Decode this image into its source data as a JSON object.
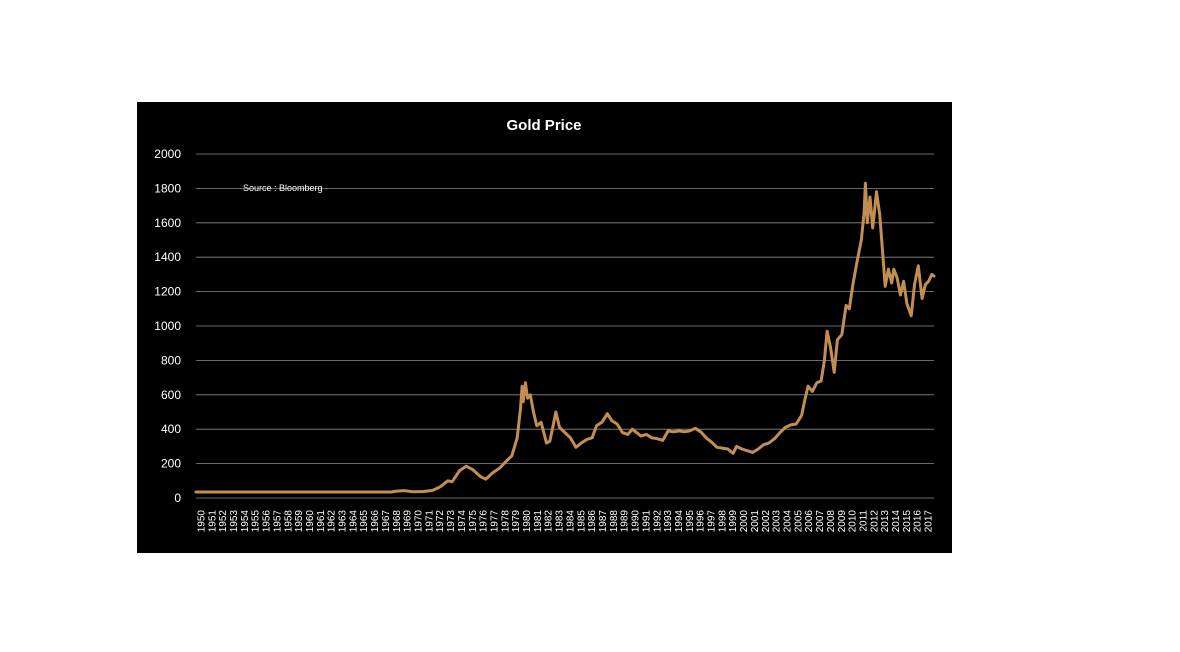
{
  "chart_data": {
    "type": "line",
    "title": "Gold Price",
    "annotation": "Source : Bloomberg",
    "xlabel": "",
    "ylabel": "",
    "ylim": [
      0,
      2000
    ],
    "yticks": [
      0,
      200,
      400,
      600,
      800,
      1000,
      1200,
      1400,
      1600,
      1800,
      2000
    ],
    "xlim": [
      1950,
      2018
    ],
    "grid": "horizontal",
    "legend": "none",
    "line_color": "#c28e54",
    "background": "#000000",
    "xtick_labels": [
      "1950",
      "1951",
      "1952",
      "1953",
      "1954",
      "1955",
      "1956",
      "1957",
      "1958",
      "1959",
      "1960",
      "1961",
      "1962",
      "1963",
      "1964",
      "1965",
      "1966",
      "1967",
      "1968",
      "1969",
      "1970",
      "1971",
      "1972",
      "1973",
      "1974",
      "1975",
      "1976",
      "1977",
      "1978",
      "1979",
      "1980",
      "1981",
      "1982",
      "1983",
      "1984",
      "1985",
      "1986",
      "1987",
      "1988",
      "1989",
      "1990",
      "1991",
      "1992",
      "1993",
      "1994",
      "1995",
      "1996",
      "1997",
      "1998",
      "1999",
      "2000",
      "2001",
      "2002",
      "2003",
      "2004",
      "2005",
      "2006",
      "2007",
      "2008",
      "2009",
      "2010",
      "2011",
      "2012",
      "2013",
      "2014",
      "2015",
      "2016",
      "2017"
    ],
    "series": [
      {
        "values": [
          [
            1950,
            35
          ],
          [
            1968,
            35
          ],
          [
            1968.5,
            40
          ],
          [
            1969.2,
            43
          ],
          [
            1970,
            36
          ],
          [
            1971,
            38
          ],
          [
            1971.8,
            44
          ],
          [
            1972.5,
            65
          ],
          [
            1973.2,
            100
          ],
          [
            1973.6,
            95
          ],
          [
            1974.3,
            160
          ],
          [
            1974.9,
            185
          ],
          [
            1975.5,
            165
          ],
          [
            1976.2,
            125
          ],
          [
            1976.7,
            110
          ],
          [
            1977.3,
            145
          ],
          [
            1978,
            175
          ],
          [
            1978.6,
            215
          ],
          [
            1979.1,
            245
          ],
          [
            1979.6,
            350
          ],
          [
            1979.9,
            520
          ],
          [
            1980.05,
            650
          ],
          [
            1980.15,
            560
          ],
          [
            1980.35,
            670
          ],
          [
            1980.55,
            580
          ],
          [
            1980.8,
            600
          ],
          [
            1981.1,
            500
          ],
          [
            1981.4,
            420
          ],
          [
            1981.8,
            440
          ],
          [
            1982.3,
            320
          ],
          [
            1982.6,
            330
          ],
          [
            1982.9,
            420
          ],
          [
            1983.15,
            500
          ],
          [
            1983.5,
            410
          ],
          [
            1984,
            380
          ],
          [
            1984.5,
            350
          ],
          [
            1985,
            295
          ],
          [
            1985.5,
            320
          ],
          [
            1986,
            340
          ],
          [
            1986.5,
            350
          ],
          [
            1986.9,
            420
          ],
          [
            1987.4,
            440
          ],
          [
            1987.9,
            490
          ],
          [
            1988.3,
            450
          ],
          [
            1988.8,
            430
          ],
          [
            1989.3,
            380
          ],
          [
            1989.8,
            370
          ],
          [
            1990.2,
            400
          ],
          [
            1990.6,
            380
          ],
          [
            1991,
            360
          ],
          [
            1991.5,
            370
          ],
          [
            1992,
            350
          ],
          [
            1992.5,
            345
          ],
          [
            1993,
            335
          ],
          [
            1993.5,
            390
          ],
          [
            1994,
            385
          ],
          [
            1994.5,
            390
          ],
          [
            1995,
            385
          ],
          [
            1995.5,
            390
          ],
          [
            1996,
            405
          ],
          [
            1996.5,
            385
          ],
          [
            1997,
            350
          ],
          [
            1997.5,
            325
          ],
          [
            1998,
            295
          ],
          [
            1998.5,
            290
          ],
          [
            1999,
            285
          ],
          [
            1999.5,
            260
          ],
          [
            1999.8,
            300
          ],
          [
            2000.3,
            285
          ],
          [
            2000.8,
            275
          ],
          [
            2001.3,
            265
          ],
          [
            2001.8,
            285
          ],
          [
            2002.3,
            310
          ],
          [
            2002.8,
            320
          ],
          [
            2003.3,
            345
          ],
          [
            2003.8,
            380
          ],
          [
            2004.3,
            410
          ],
          [
            2004.8,
            425
          ],
          [
            2005.3,
            430
          ],
          [
            2005.8,
            480
          ],
          [
            2006.1,
            570
          ],
          [
            2006.4,
            650
          ],
          [
            2006.8,
            620
          ],
          [
            2007.2,
            670
          ],
          [
            2007.6,
            680
          ],
          [
            2007.9,
            800
          ],
          [
            2008.15,
            970
          ],
          [
            2008.45,
            880
          ],
          [
            2008.8,
            730
          ],
          [
            2009.1,
            920
          ],
          [
            2009.5,
            950
          ],
          [
            2009.9,
            1120
          ],
          [
            2010.2,
            1100
          ],
          [
            2010.5,
            1230
          ],
          [
            2010.9,
            1370
          ],
          [
            2011.3,
            1500
          ],
          [
            2011.55,
            1650
          ],
          [
            2011.68,
            1830
          ],
          [
            2011.85,
            1600
          ],
          [
            2012.1,
            1750
          ],
          [
            2012.35,
            1570
          ],
          [
            2012.7,
            1780
          ],
          [
            2013,
            1650
          ],
          [
            2013.3,
            1400
          ],
          [
            2013.5,
            1230
          ],
          [
            2013.8,
            1330
          ],
          [
            2014.1,
            1250
          ],
          [
            2014.3,
            1330
          ],
          [
            2014.6,
            1280
          ],
          [
            2014.9,
            1180
          ],
          [
            2015.2,
            1260
          ],
          [
            2015.5,
            1130
          ],
          [
            2015.9,
            1060
          ],
          [
            2016.2,
            1240
          ],
          [
            2016.55,
            1350
          ],
          [
            2016.9,
            1160
          ],
          [
            2017.2,
            1240
          ],
          [
            2017.5,
            1260
          ],
          [
            2017.8,
            1300
          ],
          [
            2018,
            1290
          ]
        ]
      }
    ]
  }
}
